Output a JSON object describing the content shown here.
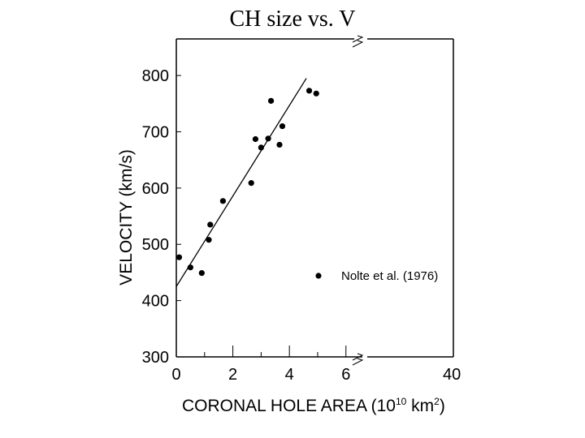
{
  "slide": {
    "title": "CH size vs. V"
  },
  "chart_data": {
    "type": "scatter",
    "title": "",
    "xlabel_main": "CORONAL HOLE AREA (10",
    "xlabel_exp": "10",
    "xlabel_unit": " km",
    "xlabel_unit_exp": "2",
    "xlabel_close": ")",
    "ylabel": "VELOCITY (km/s)",
    "xlim": [
      0,
      9.8
    ],
    "ylim": [
      300,
      865
    ],
    "x_ticks": [
      0,
      2,
      4,
      6
    ],
    "x_tick_labels": [
      "0",
      "2",
      "4",
      "6"
    ],
    "x_extra_label": "40",
    "y_ticks": [
      300,
      400,
      500,
      600,
      700,
      800
    ],
    "y_tick_labels": [
      "300",
      "400",
      "500",
      "600",
      "700",
      "800"
    ],
    "series": [
      {
        "name": "Nolte et al. (1976)",
        "points": [
          {
            "x": 0.1,
            "y": 477
          },
          {
            "x": 0.5,
            "y": 459
          },
          {
            "x": 0.9,
            "y": 449
          },
          {
            "x": 1.15,
            "y": 508
          },
          {
            "x": 1.2,
            "y": 535
          },
          {
            "x": 1.65,
            "y": 577
          },
          {
            "x": 2.65,
            "y": 609
          },
          {
            "x": 2.8,
            "y": 687
          },
          {
            "x": 3.0,
            "y": 672
          },
          {
            "x": 3.25,
            "y": 688
          },
          {
            "x": 3.35,
            "y": 755
          },
          {
            "x": 3.65,
            "y": 677
          },
          {
            "x": 3.75,
            "y": 710
          },
          {
            "x": 4.7,
            "y": 773
          },
          {
            "x": 4.95,
            "y": 768
          }
        ]
      }
    ],
    "fit_line": {
      "x0": 0,
      "y0": 425,
      "x1": 4.6,
      "y1": 795
    },
    "legend": {
      "label": "Nolte et al. (1976)",
      "position": "lower-right"
    }
  }
}
